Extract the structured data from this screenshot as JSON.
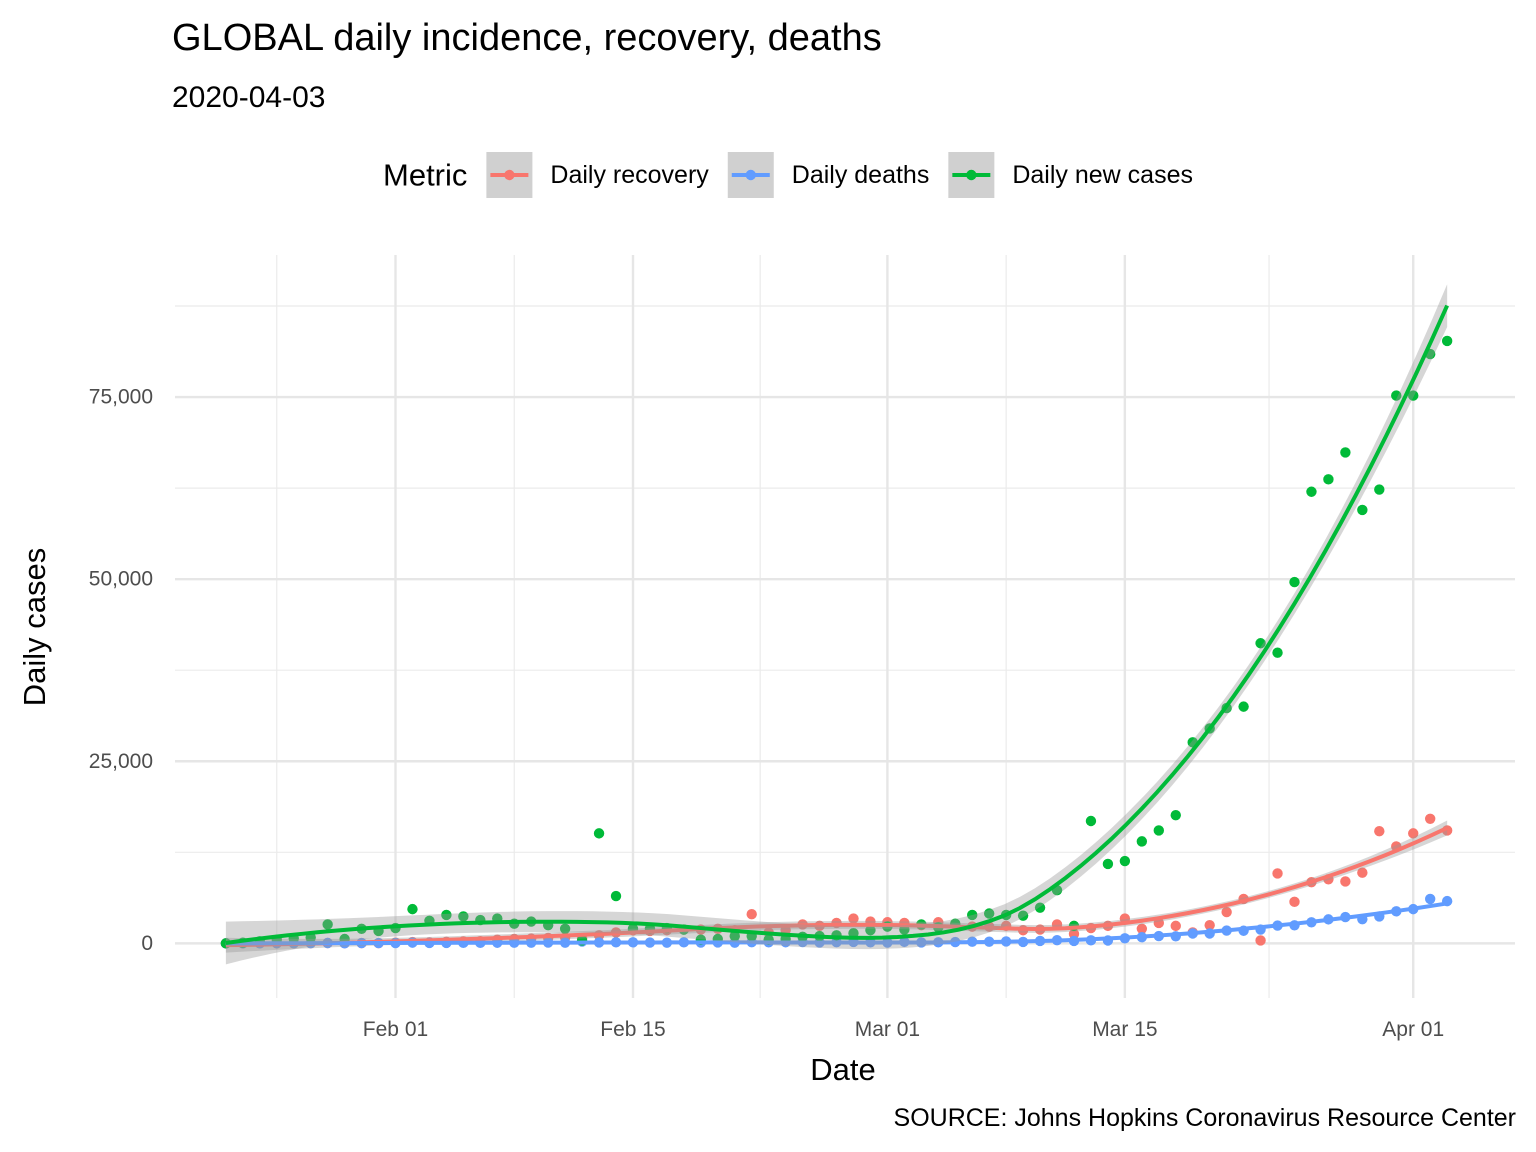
{
  "chart_data": {
    "type": "scatter_smooth",
    "title": "GLOBAL daily incidence, recovery, deaths",
    "subtitle": "2020-04-03",
    "xlabel": "Date",
    "ylabel": "Daily cases",
    "legend_title": "Metric",
    "caption": "SOURCE: Johns Hopkins Coronavirus Resource Center",
    "legend_position": "top",
    "grid": true,
    "x": [
      "01-22",
      "01-23",
      "01-24",
      "01-25",
      "01-26",
      "01-27",
      "01-28",
      "01-29",
      "01-30",
      "01-31",
      "02-01",
      "02-02",
      "02-03",
      "02-04",
      "02-05",
      "02-06",
      "02-07",
      "02-08",
      "02-09",
      "02-10",
      "02-11",
      "02-12",
      "02-13",
      "02-14",
      "02-15",
      "02-16",
      "02-17",
      "02-18",
      "02-19",
      "02-20",
      "02-21",
      "02-22",
      "02-23",
      "02-24",
      "02-25",
      "02-26",
      "02-27",
      "02-28",
      "02-29",
      "03-01",
      "03-02",
      "03-03",
      "03-04",
      "03-05",
      "03-06",
      "03-07",
      "03-08",
      "03-09",
      "03-10",
      "03-11",
      "03-12",
      "03-13",
      "03-14",
      "03-15",
      "03-16",
      "03-17",
      "03-18",
      "03-19",
      "03-20",
      "03-21",
      "03-22",
      "03-23",
      "03-24",
      "03-25",
      "03-26",
      "03-27",
      "03-28",
      "03-29",
      "03-30",
      "03-31",
      "04-01",
      "04-02",
      "04-03"
    ],
    "series": [
      {
        "name": "Daily recovery",
        "color": "#F8766D",
        "values": [
          0,
          2,
          5,
          3,
          9,
          20,
          50,
          20,
          40,
          40,
          100,
          180,
          120,
          220,
          260,
          300,
          500,
          600,
          650,
          750,
          800,
          700,
          1100,
          1500,
          1800,
          1700,
          1800,
          1900,
          1900,
          2000,
          1800,
          4000,
          1500,
          1800,
          2600,
          2400,
          2800,
          3400,
          3000,
          2900,
          2800,
          2500,
          2900,
          2600,
          2300,
          2300,
          2400,
          1800,
          1900,
          2600,
          1300,
          2100,
          2400,
          3400,
          2000,
          2800,
          2400,
          1500,
          2500,
          4300,
          6100,
          400,
          9600,
          5700,
          8400,
          8800,
          8500,
          9700,
          15400,
          13300,
          15100,
          17100,
          15500
        ]
      },
      {
        "name": "Daily deaths",
        "color": "#619CFF",
        "values": [
          0,
          1,
          8,
          16,
          14,
          26,
          49,
          2,
          38,
          42,
          46,
          103,
          64,
          66,
          73,
          73,
          86,
          89,
          97,
          108,
          97,
          254,
          121,
          143,
          142,
          105,
          98,
          139,
          115,
          125,
          97,
          163,
          150,
          155,
          185,
          126,
          161,
          194,
          150,
          110,
          206,
          124,
          142,
          175,
          230,
          225,
          266,
          198,
          330,
          437,
          328,
          417,
          393,
          695,
          846,
          1003,
          970,
          1355,
          1356,
          1758,
          1732,
          1897,
          2443,
          2483,
          2894,
          3294,
          3606,
          3320,
          3703,
          4400,
          4700,
          6100,
          5800
        ]
      },
      {
        "name": "Daily new cases",
        "color": "#00BA38",
        "values": [
          0,
          100,
          280,
          490,
          680,
          800,
          2600,
          600,
          2000,
          1700,
          2100,
          4700,
          3100,
          3900,
          3700,
          3200,
          3400,
          2700,
          3000,
          2500,
          2000,
          400,
          15100,
          6500,
          2000,
          2000,
          2100,
          1900,
          500,
          600,
          1000,
          1000,
          500,
          600,
          900,
          1000,
          1100,
          1400,
          1800,
          2300,
          1900,
          2600,
          2200,
          2700,
          3900,
          4100,
          3900,
          3800,
          4900,
          7300,
          2400,
          16800,
          10900,
          11300,
          14000,
          15500,
          17600,
          27600,
          29500,
          32300,
          32500,
          41200,
          39900,
          49600,
          62000,
          63700,
          67400,
          59500,
          62300,
          75200,
          75200,
          80900,
          82700
        ]
      }
    ],
    "xlim": [
      "01-19",
      "04-07"
    ],
    "xticks": [
      {
        "value": "02-01",
        "label": "Feb 01"
      },
      {
        "value": "02-15",
        "label": "Feb 15"
      },
      {
        "value": "03-01",
        "label": "Mar 01"
      },
      {
        "value": "03-15",
        "label": "Mar 15"
      },
      {
        "value": "04-01",
        "label": "Apr 01"
      }
    ],
    "ylim": [
      -7500,
      94500
    ],
    "yticks": [
      0,
      {
        "value": 25000,
        "label": "25,000"
      },
      {
        "value": 50000,
        "label": "50,000"
      },
      {
        "value": 75000,
        "label": "75,000"
      }
    ]
  }
}
